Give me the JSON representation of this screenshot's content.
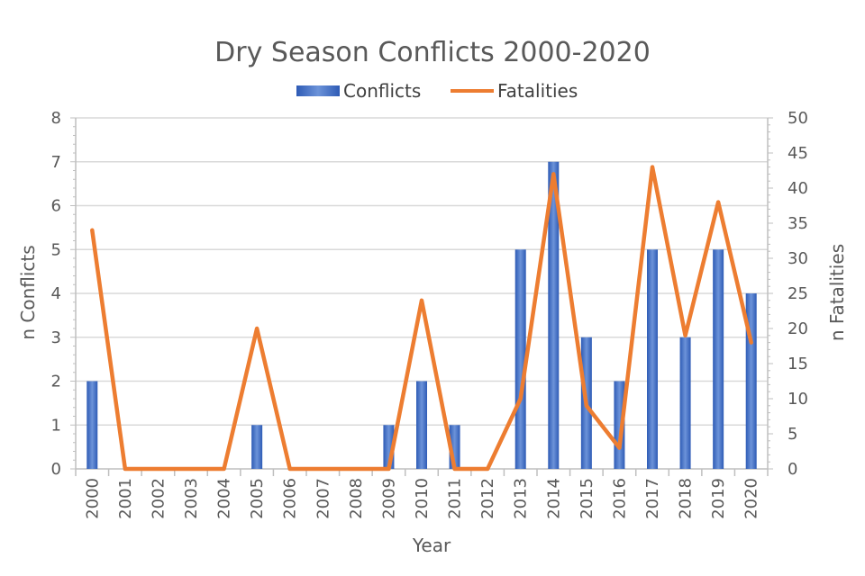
{
  "chart_data": {
    "type": "bar",
    "title": "Dry Season Conflicts 2000-2020",
    "xlabel": "Year",
    "ylabel": "n Conflicts",
    "y2label": "n Fatalities",
    "categories": [
      "2000",
      "2001",
      "2002",
      "2003",
      "2004",
      "2005",
      "2006",
      "2007",
      "2008",
      "2009",
      "2010",
      "2011",
      "2012",
      "2013",
      "2014",
      "2015",
      "2016",
      "2017",
      "2018",
      "2019",
      "2020"
    ],
    "series": [
      {
        "name": "Conflicts",
        "type": "bar",
        "axis": "left",
        "color": "#4472C4",
        "values": [
          2,
          0,
          0,
          0,
          0,
          1,
          0,
          0,
          0,
          1,
          2,
          1,
          0,
          5,
          7,
          3,
          2,
          5,
          3,
          5,
          4
        ]
      },
      {
        "name": "Fatalities",
        "type": "line",
        "axis": "right",
        "color": "#ED7D31",
        "values": [
          34,
          0,
          0,
          0,
          0,
          20,
          0,
          0,
          0,
          0,
          24,
          0,
          0,
          10,
          42,
          9,
          3,
          43,
          19,
          38,
          18
        ]
      }
    ],
    "ylim": [
      0,
      8
    ],
    "y2lim": [
      0,
      50
    ],
    "yticks": [
      "0",
      "1",
      "2",
      "3",
      "4",
      "5",
      "6",
      "7",
      "8"
    ],
    "y2ticks": [
      "0",
      "5",
      "10",
      "15",
      "20",
      "25",
      "30",
      "35",
      "40",
      "45",
      "50"
    ],
    "grid": true,
    "legend": "top"
  }
}
